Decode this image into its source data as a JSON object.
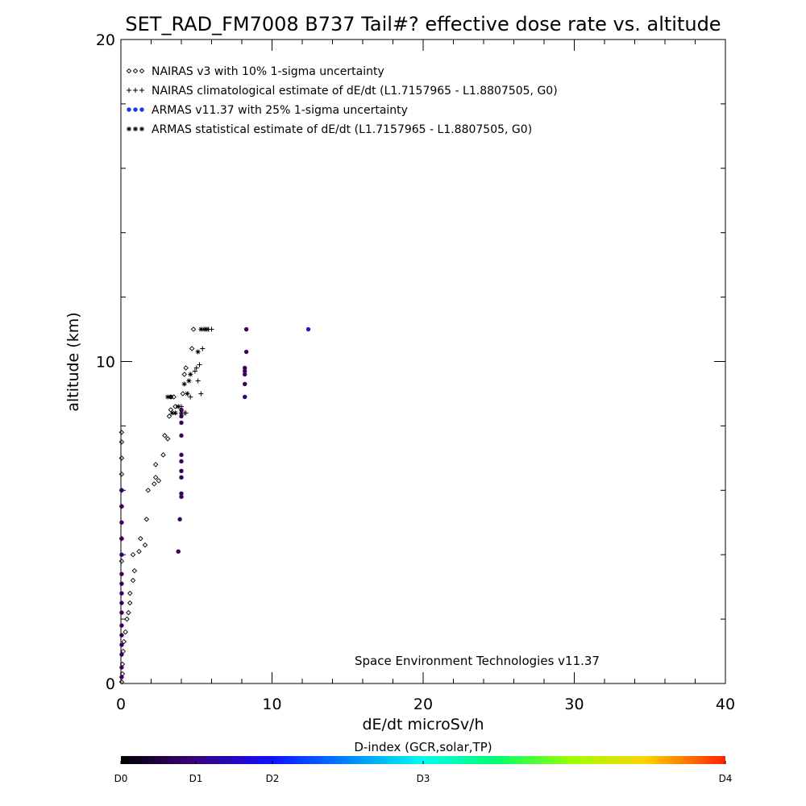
{
  "chart_data": {
    "type": "scatter",
    "title": "SET_RAD_FM7008  B737 Tail#? effective dose rate vs. altitude",
    "xlabel": "dE/dt microSv/h",
    "ylabel": "altitude (km)",
    "xlim": [
      0,
      40
    ],
    "ylim": [
      0,
      20
    ],
    "x_ticks": [
      0,
      10,
      20,
      30,
      40
    ],
    "y_ticks": [
      0,
      10,
      20
    ],
    "x_tick_labels": [
      "0",
      "10",
      "20",
      "30",
      "40"
    ],
    "y_tick_labels": [
      "0",
      "10",
      "20"
    ],
    "grid": false,
    "legend_position": "top-left",
    "legend": [
      {
        "symbols": "◇◇◇",
        "label": "NAIRAS v3 with 10% 1-sigma uncertainty"
      },
      {
        "symbols": "+++",
        "label": "NAIRAS climatological estimate of dE/dt (L1.7157965 - L1.8807505, G0)"
      },
      {
        "symbols": "●●●",
        "label": "ARMAS v11.37 with 25% 1-sigma uncertainty"
      },
      {
        "symbols": "✳✳✳",
        "label": "ARMAS statistical estimate of dE/dt (L1.7157965 - L1.8807505, G0)"
      }
    ],
    "annotation": "Space Environment Technologies v11.37",
    "colorbar": {
      "title": "D-index (GCR,solar,TP)",
      "labels": [
        "D0",
        "D1",
        "D2",
        "D3",
        "D4"
      ],
      "label_values": [
        0,
        1,
        2,
        3,
        4
      ]
    },
    "series": [
      {
        "name": "NAIRAS v3 with 10% 1-sigma uncertainty",
        "marker": "diamond",
        "color": "#000000",
        "points": [
          [
            0.05,
            0.05
          ],
          [
            0.1,
            0.3
          ],
          [
            0.1,
            0.6
          ],
          [
            0.15,
            1.0
          ],
          [
            0.2,
            1.3
          ],
          [
            0.3,
            1.6
          ],
          [
            0.4,
            2.0
          ],
          [
            0.5,
            2.2
          ],
          [
            0.6,
            2.5
          ],
          [
            0.6,
            2.8
          ],
          [
            0.8,
            3.2
          ],
          [
            0.9,
            3.5
          ],
          [
            0.8,
            4.0
          ],
          [
            1.2,
            4.1
          ],
          [
            1.3,
            4.5
          ],
          [
            1.6,
            4.3
          ],
          [
            1.7,
            5.1
          ],
          [
            1.8,
            6.0
          ],
          [
            2.2,
            6.2
          ],
          [
            2.3,
            6.4
          ],
          [
            2.3,
            6.8
          ],
          [
            2.5,
            6.3
          ],
          [
            2.8,
            7.1
          ],
          [
            2.9,
            7.7
          ],
          [
            3.1,
            7.6
          ],
          [
            3.2,
            8.3
          ],
          [
            3.3,
            8.5
          ],
          [
            3.3,
            8.9
          ],
          [
            3.5,
            8.9
          ],
          [
            3.6,
            8.6
          ],
          [
            4.1,
            9.0
          ],
          [
            4.2,
            9.6
          ],
          [
            4.3,
            9.8
          ],
          [
            4.7,
            10.4
          ],
          [
            4.8,
            11.0
          ],
          [
            0.05,
            3.8
          ],
          [
            0.05,
            4.5
          ],
          [
            0.05,
            5.5
          ],
          [
            0.05,
            6.0
          ],
          [
            0.05,
            6.5
          ],
          [
            0.05,
            7.0
          ],
          [
            0.05,
            7.5
          ],
          [
            0.05,
            7.8
          ]
        ]
      },
      {
        "name": "NAIRAS climatological estimate of dE/dt (L1.7157965 - L1.8807505, G0)",
        "marker": "plus",
        "color": "#000000",
        "points": [
          [
            4.3,
            8.4
          ],
          [
            4.6,
            8.9
          ],
          [
            5.0,
            9.8
          ],
          [
            5.1,
            9.4
          ],
          [
            5.3,
            9.0
          ],
          [
            5.4,
            10.4
          ],
          [
            5.6,
            11.0
          ],
          [
            5.8,
            11.0
          ],
          [
            6.0,
            11.0
          ],
          [
            4.9,
            9.7
          ],
          [
            5.2,
            9.9
          ],
          [
            4.0,
            8.6
          ],
          [
            4.2,
            8.4
          ]
        ]
      },
      {
        "name": "ARMAS statistical estimate of dE/dt (L1.7157965 - L1.8807505, G0)",
        "marker": "asterisk",
        "color": "#000000",
        "points": [
          [
            3.4,
            8.4
          ],
          [
            3.6,
            8.4
          ],
          [
            3.8,
            8.6
          ],
          [
            4.0,
            8.4
          ],
          [
            4.4,
            9.0
          ],
          [
            4.6,
            9.6
          ],
          [
            5.1,
            10.3
          ],
          [
            5.3,
            11.0
          ],
          [
            5.5,
            11.0
          ],
          [
            5.7,
            11.0
          ],
          [
            3.1,
            8.9
          ],
          [
            3.3,
            8.9
          ],
          [
            4.2,
            9.3
          ],
          [
            4.5,
            9.4
          ]
        ]
      },
      {
        "name": "ARMAS v11.37 with 25% 1-sigma uncertainty",
        "marker": "dot",
        "color": "#3a0060",
        "points": [
          [
            0.05,
            0.2
          ],
          [
            0.05,
            0.5
          ],
          [
            0.05,
            0.9
          ],
          [
            0.05,
            1.2
          ],
          [
            0.05,
            1.5
          ],
          [
            0.05,
            1.8
          ],
          [
            0.05,
            2.2
          ],
          [
            0.05,
            2.5
          ],
          [
            0.05,
            2.8
          ],
          [
            0.05,
            3.1
          ],
          [
            0.05,
            3.4
          ],
          [
            0.05,
            4.0
          ],
          [
            0.05,
            4.5
          ],
          [
            0.05,
            5.0
          ],
          [
            0.05,
            5.5
          ],
          [
            0.05,
            6.0
          ],
          [
            3.8,
            4.1
          ],
          [
            3.9,
            5.1
          ],
          [
            4.0,
            5.8
          ],
          [
            4.0,
            5.9
          ],
          [
            4.0,
            6.4
          ],
          [
            4.0,
            6.6
          ],
          [
            4.0,
            6.9
          ],
          [
            4.0,
            7.1
          ],
          [
            4.0,
            7.7
          ],
          [
            4.0,
            8.1
          ],
          [
            4.0,
            8.3
          ],
          [
            4.0,
            8.5
          ],
          [
            8.2,
            8.9
          ],
          [
            8.2,
            9.3
          ],
          [
            8.2,
            9.6
          ],
          [
            8.2,
            9.7
          ],
          [
            8.2,
            9.8
          ],
          [
            8.3,
            10.3
          ],
          [
            8.3,
            11.0
          ],
          [
            12.4,
            11.0
          ]
        ]
      }
    ]
  }
}
